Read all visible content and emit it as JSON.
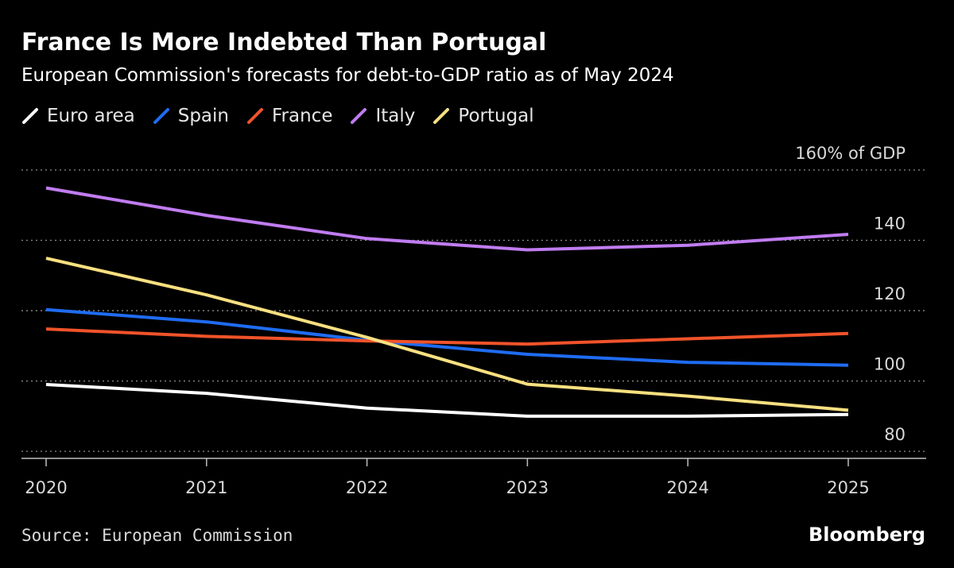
{
  "title": "France Is More Indebted Than Portugal",
  "subtitle": "European Commission's forecasts for debt-to-GDP ratio as of May 2024",
  "source": "Source: European Commission",
  "brand": "Bloomberg",
  "chart_data": {
    "type": "line",
    "title": "France Is More Indebted Than Portugal",
    "subtitle": "European Commission's forecasts for debt-to-GDP ratio as of May 2024",
    "x": [
      "2020",
      "2021",
      "2022",
      "2023",
      "2024",
      "2025"
    ],
    "y_ticks": [
      {
        "value": 80,
        "label": "80"
      },
      {
        "value": 100,
        "label": "100"
      },
      {
        "value": 120,
        "label": "120"
      },
      {
        "value": 140,
        "label": "140"
      },
      {
        "value": 160,
        "label": "160% of GDP"
      }
    ],
    "ylim": [
      78,
      160
    ],
    "y_axis_side": "right",
    "grid": "horizontal dotted",
    "legend_position": "top-left",
    "series": [
      {
        "name": "Euro area",
        "color": "#ffffff",
        "values": [
          99,
          96.5,
          92.3,
          90,
          90,
          90.5
        ]
      },
      {
        "name": "Spain",
        "color": "#1f6cf2",
        "values": [
          120.3,
          116.8,
          111.6,
          107.6,
          105.3,
          104.5
        ]
      },
      {
        "name": "France",
        "color": "#f0532a",
        "values": [
          114.8,
          112.7,
          111.4,
          110.5,
          112,
          113.5
        ]
      },
      {
        "name": "Italy",
        "color": "#c07cf0",
        "values": [
          154.9,
          147.1,
          140.5,
          137.3,
          138.6,
          141.7
        ]
      },
      {
        "name": "Portugal",
        "color": "#f8e080",
        "values": [
          134.9,
          124.5,
          112.4,
          99.1,
          95.7,
          91.7
        ]
      }
    ]
  }
}
